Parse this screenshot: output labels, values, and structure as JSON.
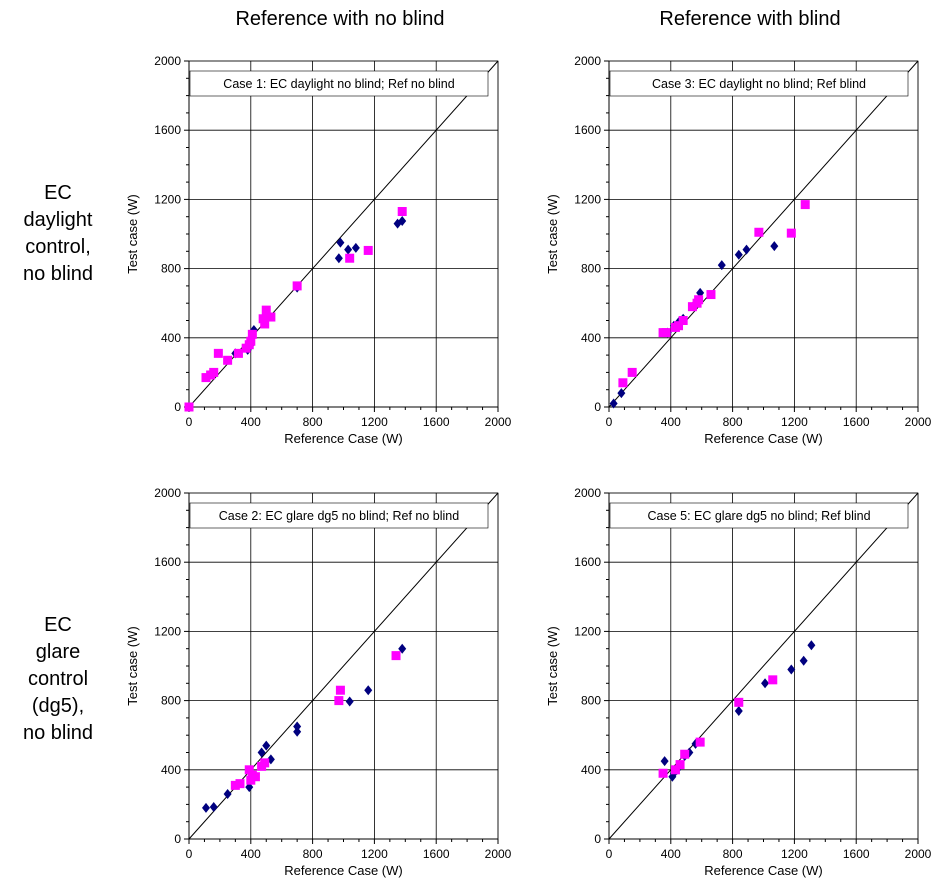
{
  "column_titles": [
    "Reference with no blind",
    "Reference with blind"
  ],
  "row_titles": [
    [
      "EC",
      "daylight",
      "control,",
      "no blind"
    ],
    [
      "EC",
      "glare",
      "control",
      "(dg5),",
      "no blind"
    ]
  ],
  "colors": {
    "series_diamond": "#00007f",
    "series_square": "#ff00ff",
    "grid": "#000000"
  },
  "chart_data": [
    {
      "type": "scatter",
      "annotation": "Case 1: EC daylight no blind; Ref no blind",
      "xlabel": "Reference Case (W)",
      "ylabel": "Test case (W)",
      "xlim": [
        0,
        2000
      ],
      "ylim": [
        0,
        2000
      ],
      "xticks": [
        0,
        400,
        800,
        1200,
        1600,
        2000
      ],
      "yticks": [
        0,
        400,
        800,
        1200,
        1600,
        2000
      ],
      "grid": true,
      "diagonal": true,
      "series": [
        {
          "marker": "diamond",
          "x": [
            0,
            300,
            380,
            400,
            410,
            420,
            700,
            970,
            980,
            1030,
            1080,
            1350,
            1380
          ],
          "y": [
            0,
            310,
            330,
            360,
            430,
            445,
            690,
            860,
            950,
            910,
            920,
            1060,
            1075
          ]
        },
        {
          "marker": "square",
          "x": [
            0,
            110,
            140,
            160,
            190,
            250,
            320,
            370,
            390,
            400,
            410,
            480,
            490,
            500,
            530,
            700,
            1040,
            1160,
            1380
          ],
          "y": [
            0,
            170,
            185,
            200,
            310,
            270,
            310,
            340,
            360,
            380,
            420,
            510,
            480,
            560,
            520,
            700,
            860,
            905,
            1130
          ]
        }
      ]
    },
    {
      "type": "scatter",
      "annotation": "Case 3: EC daylight no blind; Ref blind",
      "xlabel": "Reference Case (W)",
      "ylabel": "Test case (W)",
      "xlim": [
        0,
        2000
      ],
      "ylim": [
        0,
        2000
      ],
      "xticks": [
        0,
        400,
        800,
        1200,
        1600,
        2000
      ],
      "yticks": [
        0,
        400,
        800,
        1200,
        1600,
        2000
      ],
      "grid": true,
      "diagonal": true,
      "series": [
        {
          "marker": "diamond",
          "x": [
            30,
            80,
            380,
            420,
            450,
            480,
            560,
            590,
            730,
            840,
            890,
            1070
          ],
          "y": [
            20,
            80,
            430,
            470,
            490,
            510,
            600,
            660,
            820,
            880,
            910,
            930
          ]
        },
        {
          "marker": "square",
          "x": [
            90,
            150,
            350,
            370,
            430,
            450,
            480,
            540,
            570,
            580,
            660,
            970,
            1180,
            1270
          ],
          "y": [
            140,
            200,
            430,
            430,
            460,
            470,
            500,
            580,
            600,
            620,
            650,
            1010,
            1005,
            1170
          ]
        }
      ]
    },
    {
      "type": "scatter",
      "annotation": "Case 2: EC glare dg5 no blind; Ref no blind",
      "xlabel": "Reference Case (W)",
      "ylabel": "Test case (W)",
      "xlim": [
        0,
        2000
      ],
      "ylim": [
        0,
        2000
      ],
      "xticks": [
        0,
        400,
        800,
        1200,
        1600,
        2000
      ],
      "yticks": [
        0,
        400,
        800,
        1200,
        1600,
        2000
      ],
      "grid": true,
      "diagonal": true,
      "series": [
        {
          "marker": "diamond",
          "x": [
            110,
            160,
            250,
            390,
            400,
            470,
            500,
            530,
            700,
            700,
            1040,
            1160,
            1380
          ],
          "y": [
            180,
            185,
            260,
            300,
            340,
            500,
            540,
            460,
            620,
            650,
            795,
            860,
            1100
          ]
        },
        {
          "marker": "square",
          "x": [
            300,
            330,
            390,
            400,
            410,
            430,
            470,
            490,
            970,
            980,
            1340
          ],
          "y": [
            310,
            320,
            400,
            340,
            370,
            360,
            420,
            440,
            800,
            860,
            1060
          ]
        }
      ]
    },
    {
      "type": "scatter",
      "annotation": "Case 5: EC glare dg5 no blind; Ref blind",
      "xlabel": "Reference Case (W)",
      "ylabel": "Test case (W)",
      "xlim": [
        0,
        2000
      ],
      "ylim": [
        0,
        2000
      ],
      "xticks": [
        0,
        400,
        800,
        1200,
        1600,
        2000
      ],
      "yticks": [
        0,
        400,
        800,
        1200,
        1600,
        2000
      ],
      "grid": true,
      "diagonal": true,
      "series": [
        {
          "marker": "diamond",
          "x": [
            360,
            410,
            420,
            440,
            490,
            520,
            560,
            840,
            1010,
            1180,
            1260,
            1310
          ],
          "y": [
            450,
            360,
            380,
            400,
            480,
            500,
            550,
            740,
            900,
            980,
            1030,
            1120
          ]
        },
        {
          "marker": "square",
          "x": [
            350,
            430,
            460,
            490,
            590,
            840,
            1060
          ],
          "y": [
            380,
            400,
            430,
            490,
            560,
            790,
            920
          ]
        }
      ]
    }
  ]
}
